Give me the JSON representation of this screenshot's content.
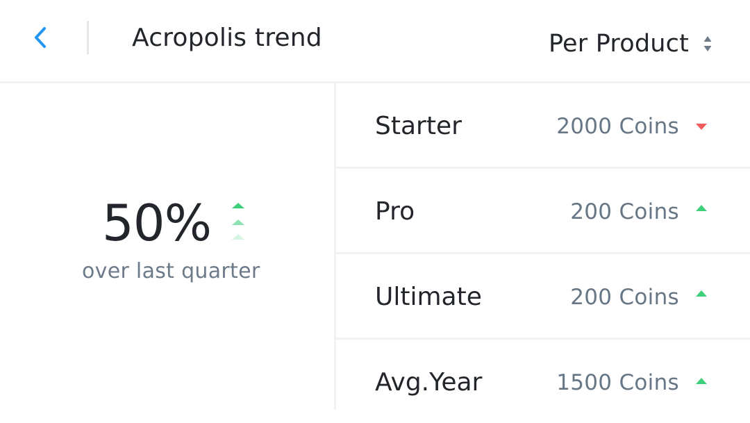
{
  "header": {
    "title": "Acropolis trend",
    "selector_label": "Per Product",
    "back_icon": "chevron-left-icon",
    "selector_icon": "sort-arrows-icon"
  },
  "summary": {
    "value": "50%",
    "caption": "over last quarter",
    "trend": "up",
    "trend_icon": "triple-up-arrow-icon"
  },
  "products": [
    {
      "name": "Starter",
      "value": "2000 Coins",
      "trend": "down"
    },
    {
      "name": "Pro",
      "value": "200 Coins",
      "trend": "up"
    },
    {
      "name": "Ultimate",
      "value": "200 Coins",
      "trend": "up"
    },
    {
      "name": "Avg.Year",
      "value": "1500 Coins",
      "trend": "up"
    }
  ],
  "colors": {
    "accent": "#2196f3",
    "up": "#3ecf7a",
    "down": "#f25b5b",
    "text": "#22262b",
    "muted": "#6c7a89"
  }
}
